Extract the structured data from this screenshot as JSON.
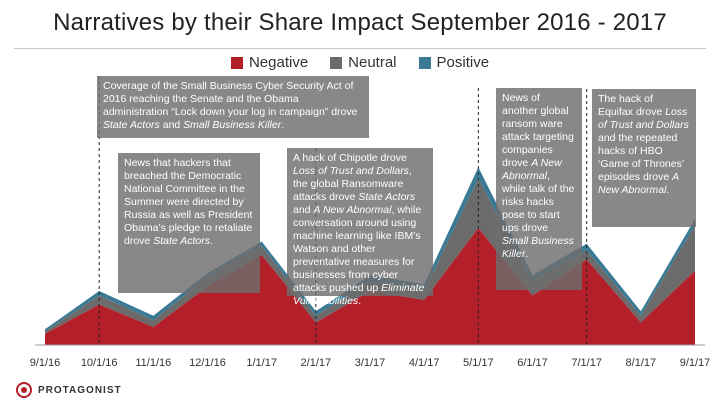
{
  "chart_data": {
    "type": "area",
    "title": "Narratives by their Share Impact September 2016 - 2017",
    "x_tick_labels": [
      "9/1/16",
      "10/1/16",
      "11/1/16",
      "12/1/16",
      "1/1/17",
      "2/1/17",
      "3/1/17",
      "4/1/17",
      "5/1/17",
      "6/1/17",
      "7/1/17",
      "8/1/17",
      "9/1/17"
    ],
    "stacked": true,
    "series": [
      {
        "name": "Negative",
        "color": "#b3202a",
        "values": [
          5,
          18,
          8,
          26,
          40,
          10,
          24,
          20,
          52,
          22,
          38,
          10,
          33
        ]
      },
      {
        "name": "Neutral",
        "color": "#6b6b6b",
        "values": [
          1,
          4,
          3,
          4,
          4,
          3,
          4,
          4,
          22,
          6,
          4,
          3,
          20
        ]
      },
      {
        "name": "Positive",
        "color": "#3a7a94",
        "values": [
          1,
          2,
          2,
          2,
          2,
          2,
          3,
          3,
          5,
          3,
          3,
          2,
          3
        ]
      }
    ],
    "ylim": [
      0,
      120
    ],
    "grid": false,
    "legend_position": "top",
    "annotations": [
      {
        "id": "a1",
        "x_index": 1,
        "parts": [
          [
            "Coverage of the Small Business Cyber Security Act of 2016 reaching the Senate and the Obama administration “Lock down your log in campaign” drove ",
            false
          ],
          [
            "State Actors",
            true
          ],
          [
            " and ",
            false
          ],
          [
            "Small Business Killer",
            true
          ],
          [
            ".",
            false
          ]
        ]
      },
      {
        "id": "a2",
        "x_index": 1,
        "parts": [
          [
            "News that hackers that breached the Democratic National Committee in the Summer were directed by Russia as well as President Obama’s pledge to retaliate drove ",
            false
          ],
          [
            "State Actors",
            true
          ],
          [
            ".",
            false
          ]
        ]
      },
      {
        "id": "a3",
        "x_index": 5,
        "parts": [
          [
            "A hack of Chipotle drove ",
            false
          ],
          [
            "Loss of Trust and Dollars",
            true
          ],
          [
            ", the global Ransomware attacks drove ",
            false
          ],
          [
            "State Actors",
            true
          ],
          [
            " and ",
            false
          ],
          [
            "A New Abnormal",
            true
          ],
          [
            ", while conversation around using machine learning like IBM’s Watson and other preventative measures for businesses from cyber attacks pushed up ",
            false
          ],
          [
            "Eliminate Vulnerabilities",
            true
          ],
          [
            ".",
            false
          ]
        ]
      },
      {
        "id": "a4",
        "x_index": 8,
        "parts": [
          [
            "News of another global ransom ware attack targeting companies drove ",
            false
          ],
          [
            "A New Abnormal",
            true
          ],
          [
            ", while talk of the risks hacks pose to start ups drove ",
            false
          ],
          [
            "Small Business Killer",
            true
          ],
          [
            ".",
            false
          ]
        ]
      },
      {
        "id": "a5",
        "x_index": 10,
        "parts": [
          [
            "The hack of Equifax drove ",
            false
          ],
          [
            "Loss of Trust and Dollars",
            true
          ],
          [
            " and the repeated hacks of HBO ‘Game of Thrones’ episodes drove ",
            false
          ],
          [
            "A New Abnormal",
            true
          ],
          [
            ".",
            false
          ]
        ]
      }
    ]
  },
  "footer": {
    "brand": "PROTAGONIST"
  }
}
